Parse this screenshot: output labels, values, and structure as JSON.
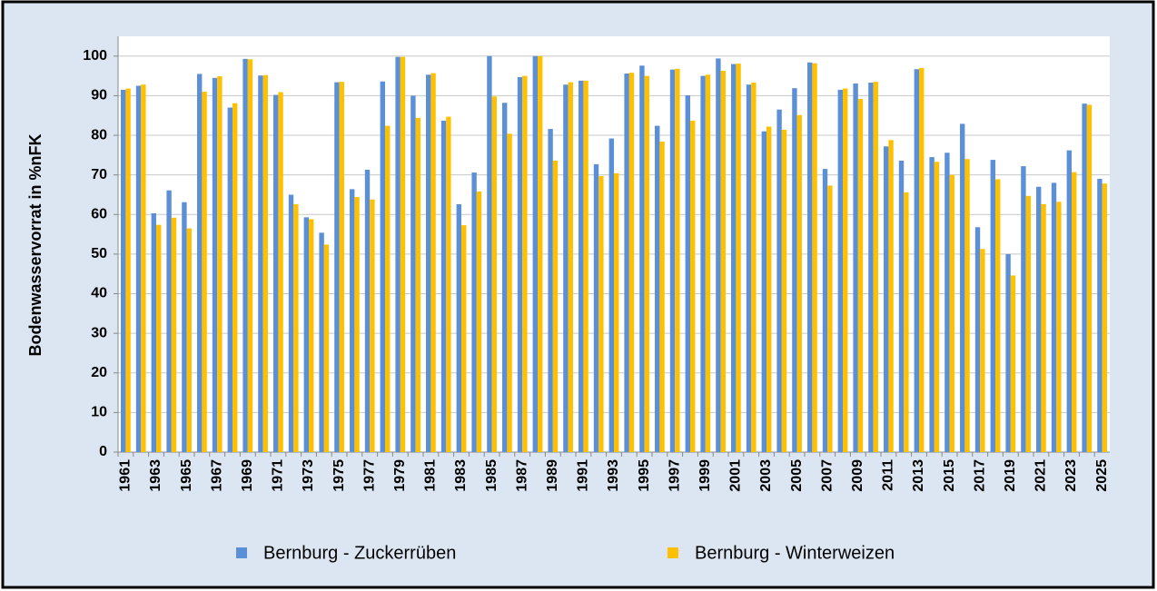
{
  "chart_data": {
    "type": "bar",
    "y_label": "Bodenwasservorrat in %nFK",
    "categories": [
      "1961",
      null,
      "1963",
      null,
      "1965",
      null,
      "1967",
      null,
      "1969",
      null,
      "1971",
      null,
      "1973",
      null,
      "1975",
      null,
      "1977",
      null,
      "1979",
      null,
      "1981",
      null,
      "1983",
      null,
      "1985",
      null,
      "1987",
      null,
      "1989",
      null,
      "1991",
      null,
      "1993",
      null,
      "1995",
      null,
      "1997",
      null,
      "1999",
      null,
      "2001",
      null,
      "2003",
      null,
      "2005",
      null,
      "2007",
      null,
      "2009",
      null,
      "2011",
      null,
      "2013",
      null,
      "2015",
      null,
      "2017",
      null,
      "2019",
      null,
      "2021",
      null,
      "2023",
      null,
      "2025"
    ],
    "series": [
      {
        "name": "Bernburg - Zuckerrüben",
        "color": "#5b8fd6",
        "values": [
          91.5,
          92.5,
          60.3,
          66.1,
          63.1,
          95.5,
          94.5,
          87,
          99.3,
          95.1,
          90.2,
          65,
          59.3,
          55.4,
          93.4,
          66.4,
          71.3,
          93.6,
          99.8,
          90,
          95.3,
          83.7,
          62.6,
          70.6,
          100,
          88.2,
          94.7,
          100,
          81.6,
          92.8,
          93.8,
          72.7,
          79.2,
          95.6,
          97.6,
          82.4,
          96.6,
          90.1,
          95,
          99.4,
          98,
          92.8,
          81,
          86.5,
          91.9,
          98.4,
          71.5,
          91.5,
          93.1,
          93.3,
          77.2,
          73.6,
          96.7,
          74.5,
          75.6,
          82.9,
          56.8,
          73.8,
          50,
          72.2,
          67,
          68,
          76.2,
          88,
          69
        ]
      },
      {
        "name": "Bernburg - Winterweizen",
        "color": "#ffc000",
        "values": [
          91.8,
          92.8,
          57.4,
          59.2,
          56.5,
          91,
          94.9,
          88.1,
          99.2,
          95.2,
          90.9,
          62.6,
          58.8,
          52.4,
          93.5,
          64.4,
          63.8,
          82.4,
          99.8,
          84.4,
          95.7,
          84.7,
          57.3,
          65.8,
          89.8,
          80.4,
          95,
          100,
          73.6,
          93.4,
          93.8,
          69.7,
          70.4,
          95.8,
          95,
          78.4,
          96.8,
          83.7,
          95.3,
          96.3,
          98.1,
          93.3,
          82.2,
          81.4,
          85.1,
          98.2,
          67.3,
          91.8,
          89.2,
          93.5,
          78.8,
          65.6,
          97,
          73.3,
          70,
          74,
          51.3,
          68.9,
          44.6,
          64.7,
          62.6,
          63.2,
          70.7,
          87.7,
          67.8
        ]
      }
    ],
    "ylim": [
      0,
      105
    ],
    "yticks": [
      0,
      10,
      20,
      30,
      40,
      50,
      60,
      70,
      80,
      90,
      100
    ],
    "grid": true
  }
}
